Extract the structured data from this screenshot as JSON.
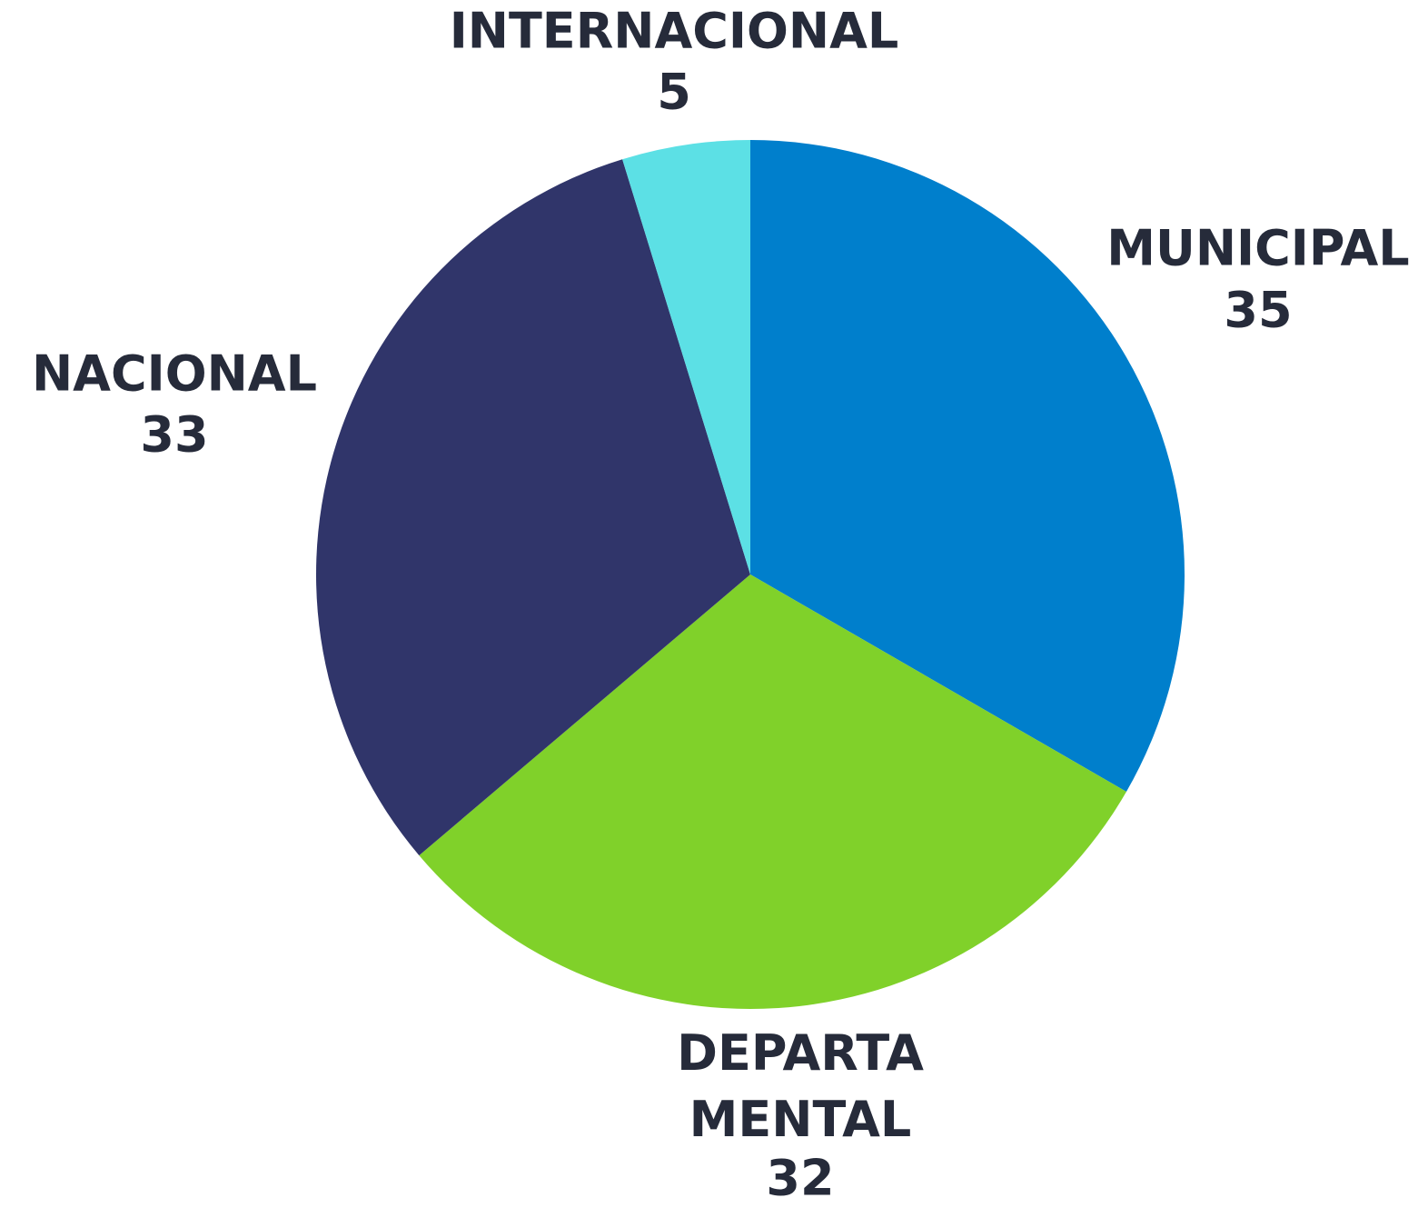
{
  "chart_data": {
    "type": "pie",
    "categories": [
      "MUNICIPAL",
      "DEPARTAMENTAL",
      "NACIONAL",
      "INTERNACIONAL"
    ],
    "values": [
      35,
      32,
      33,
      5
    ],
    "colors": [
      "#007fcc",
      "#80d12a",
      "#30356a",
      "#5ce0e5"
    ]
  }
}
